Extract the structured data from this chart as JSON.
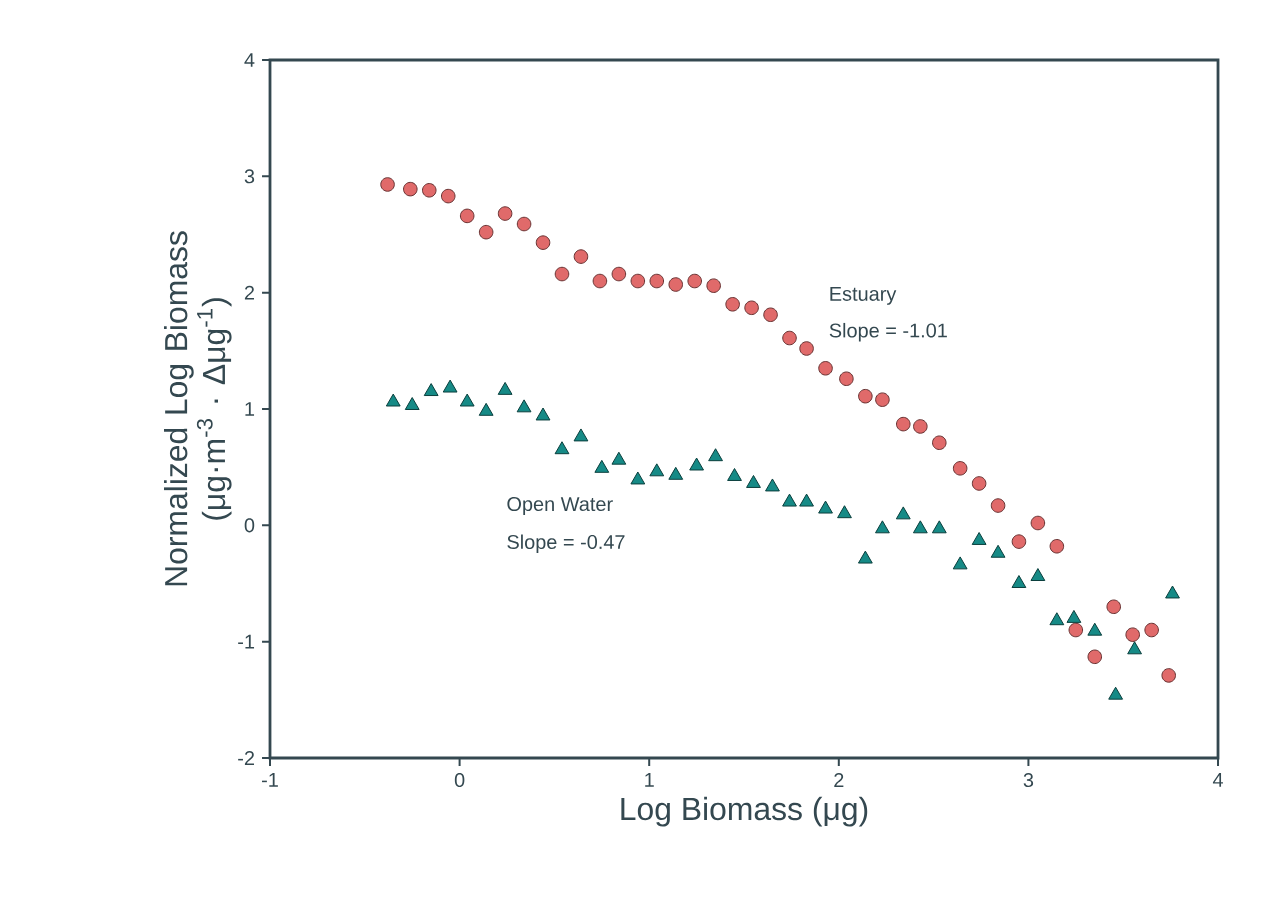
{
  "chart_data": {
    "type": "scatter",
    "xlabel": "Log Biomass (μg)",
    "ylabel": "Normalized Log Biomass (μg·m$^{-3}$ · Δμg$^{-1}$)",
    "xlim": [
      -1,
      4
    ],
    "ylim": [
      -2,
      4
    ],
    "xticks": [
      -1,
      0,
      1,
      2,
      3,
      4
    ],
    "yticks": [
      -2,
      -1,
      0,
      1,
      2,
      3,
      4
    ],
    "grid": false,
    "series": [
      {
        "color": "#e06a6a",
        "marker": "circle",
        "x": [
          -0.38,
          -0.26,
          -0.16,
          -0.06,
          0.04,
          0.14,
          0.24,
          0.34,
          0.44,
          0.54,
          0.64,
          0.74,
          0.84,
          0.94,
          1.04,
          1.14,
          1.24,
          1.34,
          1.44,
          1.54,
          1.64,
          1.74,
          1.83,
          1.93,
          2.04,
          2.14,
          2.23,
          2.34,
          2.43,
          2.53,
          2.64,
          2.74,
          2.84,
          2.95,
          3.05,
          3.15,
          3.25,
          3.35,
          3.45,
          3.55,
          3.65,
          3.74
        ],
        "values": [
          2.93,
          2.89,
          2.88,
          2.83,
          2.66,
          2.52,
          2.68,
          2.59,
          2.43,
          2.16,
          2.31,
          2.1,
          2.16,
          2.1,
          2.1,
          2.07,
          2.1,
          2.06,
          1.9,
          1.87,
          1.81,
          1.61,
          1.52,
          1.35,
          1.26,
          1.11,
          1.08,
          0.87,
          0.85,
          0.71,
          0.49,
          0.36,
          0.17,
          -0.14,
          0.02,
          -0.18,
          -0.9,
          -1.13,
          -0.7,
          -0.94,
          -0.9,
          -1.29
        ]
      },
      {
        "color": "#168a86",
        "marker": "triangle",
        "x": [
          -0.35,
          -0.25,
          -0.15,
          -0.05,
          0.04,
          0.14,
          0.24,
          0.34,
          0.44,
          0.54,
          0.64,
          0.75,
          0.84,
          0.94,
          1.04,
          1.14,
          1.25,
          1.35,
          1.45,
          1.55,
          1.65,
          1.74,
          1.83,
          1.93,
          2.03,
          2.14,
          2.23,
          2.34,
          2.43,
          2.53,
          2.64,
          2.74,
          2.84,
          2.95,
          3.05,
          3.15,
          3.24,
          3.35,
          3.46,
          3.56,
          3.76
        ],
        "values": [
          1.06,
          1.03,
          1.15,
          1.18,
          1.06,
          0.98,
          1.16,
          1.01,
          0.94,
          0.65,
          0.76,
          0.49,
          0.56,
          0.39,
          0.46,
          0.43,
          0.51,
          0.59,
          0.42,
          0.36,
          0.33,
          0.2,
          0.2,
          0.14,
          0.1,
          -0.29,
          -0.03,
          0.09,
          -0.03,
          -0.03,
          -0.34,
          -0.13,
          -0.24,
          -0.5,
          -0.44,
          -0.82,
          -0.8,
          -0.91,
          -1.46,
          -1.07,
          -0.59
        ]
      }
    ],
    "annotations": [
      "Estuary",
      "Slope = -1.01",
      "Open Water",
      "Slope = -0.47"
    ]
  }
}
